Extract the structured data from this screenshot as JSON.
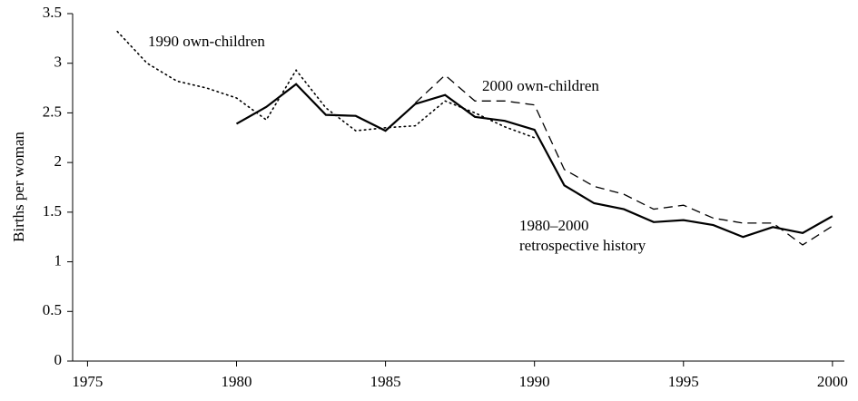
{
  "chart_data": {
    "type": "line",
    "ylabel": "Births per woman",
    "x": [
      1976,
      1977,
      1978,
      1979,
      1980,
      1981,
      1982,
      1983,
      1984,
      1985,
      1986,
      1987,
      1988,
      1989,
      1990,
      1991,
      1992,
      1993,
      1994,
      1995,
      1996,
      1997,
      1998,
      1999,
      2000
    ],
    "series": [
      {
        "name": "1990 own-children",
        "color": "#000000",
        "style": "dotted",
        "values": [
          3.32,
          3.0,
          2.82,
          2.75,
          2.65,
          2.43,
          2.93,
          2.55,
          2.32,
          2.35,
          2.37,
          2.62,
          2.5,
          2.36,
          2.25,
          null,
          null,
          null,
          null,
          null,
          null,
          null,
          null,
          null,
          null
        ]
      },
      {
        "name": "2000 own-children",
        "color": "#000000",
        "style": "dashed",
        "values": [
          null,
          null,
          null,
          null,
          null,
          null,
          null,
          null,
          null,
          null,
          2.6,
          2.88,
          2.62,
          2.62,
          2.58,
          1.93,
          1.76,
          1.68,
          1.53,
          1.57,
          1.44,
          1.39,
          1.39,
          1.17,
          1.36
        ]
      },
      {
        "name": [
          "1980–2000",
          "retrospective history"
        ],
        "color": "#000000",
        "style": "solid",
        "values": [
          null,
          null,
          null,
          null,
          2.39,
          2.56,
          2.79,
          2.48,
          2.47,
          2.32,
          2.59,
          2.68,
          2.46,
          2.42,
          2.33,
          1.77,
          1.59,
          1.53,
          1.4,
          1.42,
          1.37,
          1.25,
          1.35,
          1.29,
          1.46
        ]
      }
    ],
    "xlim": [
      1974.5,
      2000.4
    ],
    "xticks": [
      1975,
      1980,
      1985,
      1990,
      1995,
      2000
    ],
    "ylim": [
      0,
      3.5
    ],
    "yticks": [
      0,
      0.5,
      1,
      1.5,
      2,
      2.5,
      3,
      3.5
    ],
    "grid": false
  }
}
